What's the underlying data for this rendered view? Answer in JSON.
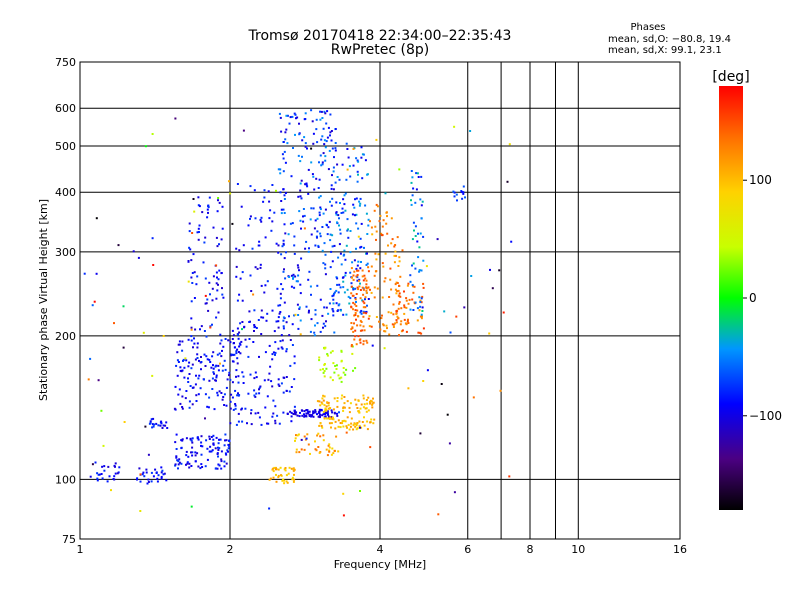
{
  "chart_data": {
    "type": "scatter",
    "title": "Tromsø 20170418 22:34:00–22:35:43",
    "subtitle": "RwPretec (8p)",
    "xlabel": "Frequency [MHz]",
    "ylabel": "Stationary phase Virtual Height [km]",
    "x_scale": "log",
    "y_scale": "log",
    "xlim": [
      1,
      16
    ],
    "ylim": [
      75,
      750
    ],
    "x_ticks": [
      1,
      2,
      4,
      6,
      8,
      10,
      16
    ],
    "x_tick_labels": [
      "1",
      "2",
      "4",
      "6",
      "8",
      "10",
      "16"
    ],
    "x_minor_ticks": [
      7,
      9
    ],
    "y_ticks": [
      75,
      100,
      200,
      300,
      400,
      500,
      600,
      750
    ],
    "y_tick_labels": [
      "75",
      "100",
      "200",
      "300",
      "400",
      "500",
      "600",
      "750"
    ],
    "grid": true,
    "stats": {
      "heading": "Phases",
      "line_o": "mean, sd,O: −80.8, 19.4",
      "line_x": "mean, sd,X:  99.1, 23.1"
    },
    "colorbar": {
      "label": "[deg]",
      "range": [
        -180,
        180
      ],
      "ticks": [
        -100,
        0,
        100
      ],
      "tick_labels": [
        "−100",
        "0",
        "100"
      ]
    },
    "clusters": [
      {
        "f": [
          1.05,
          1.2
        ],
        "h": [
          98,
          110
        ],
        "phase": [
          -110,
          -70
        ],
        "n": 25
      },
      {
        "f": [
          1.3,
          1.5
        ],
        "h": [
          98,
          106
        ],
        "phase": [
          -110,
          -70
        ],
        "n": 30
      },
      {
        "f": [
          1.35,
          1.5
        ],
        "h": [
          128,
          134
        ],
        "phase": [
          -110,
          -70
        ],
        "n": 20
      },
      {
        "f": [
          1.55,
          2.0
        ],
        "h": [
          105,
          125
        ],
        "phase": [
          -110,
          -70
        ],
        "n": 110
      },
      {
        "f": [
          1.55,
          2.1
        ],
        "h": [
          140,
          200
        ],
        "phase": [
          -110,
          -70
        ],
        "n": 150
      },
      {
        "f": [
          1.65,
          1.95
        ],
        "h": [
          200,
          400
        ],
        "phase": [
          -110,
          -70
        ],
        "n": 80
      },
      {
        "f": [
          2.0,
          2.7
        ],
        "h": [
          130,
          220
        ],
        "phase": [
          -110,
          -70
        ],
        "n": 140
      },
      {
        "f": [
          2.05,
          2.6
        ],
        "h": [
          220,
          420
        ],
        "phase": [
          -110,
          -70
        ],
        "n": 70
      },
      {
        "f": [
          2.5,
          3.3
        ],
        "h": [
          200,
          600
        ],
        "phase": [
          -110,
          -40
        ],
        "n": 260
      },
      {
        "f": [
          2.4,
          2.7
        ],
        "h": [
          98,
          106
        ],
        "phase": [
          80,
          120
        ],
        "n": 40
      },
      {
        "f": [
          2.6,
          3.3
        ],
        "h": [
          135,
          140
        ],
        "phase": [
          -110,
          -90
        ],
        "n": 80
      },
      {
        "f": [
          2.7,
          3.3
        ],
        "h": [
          112,
          125
        ],
        "phase": [
          80,
          140
        ],
        "n": 40
      },
      {
        "f": [
          3.0,
          3.6
        ],
        "h": [
          160,
          190
        ],
        "phase": [
          20,
          60
        ],
        "n": 40
      },
      {
        "f": [
          3.0,
          3.9
        ],
        "h": [
          138,
          150
        ],
        "phase": [
          80,
          120
        ],
        "n": 70
      },
      {
        "f": [
          3.0,
          3.9
        ],
        "h": [
          127,
          135
        ],
        "phase": [
          80,
          120
        ],
        "n": 60
      },
      {
        "f": [
          3.2,
          3.8
        ],
        "h": [
          220,
          500
        ],
        "phase": [
          -100,
          -30
        ],
        "n": 150
      },
      {
        "f": [
          3.5,
          3.8
        ],
        "h": [
          190,
          280
        ],
        "phase": [
          120,
          160
        ],
        "n": 90
      },
      {
        "f": [
          3.8,
          4.4
        ],
        "h": [
          200,
          380
        ],
        "phase": [
          100,
          150
        ],
        "n": 90
      },
      {
        "f": [
          4.3,
          4.9
        ],
        "h": [
          200,
          260
        ],
        "phase": [
          110,
          160
        ],
        "n": 60
      },
      {
        "f": [
          4.6,
          4.9
        ],
        "h": [
          220,
          450
        ],
        "phase": [
          -100,
          -20
        ],
        "n": 50
      },
      {
        "f": [
          5.6,
          6.0
        ],
        "h": [
          380,
          420
        ],
        "phase": [
          -100,
          -60
        ],
        "n": 12
      },
      {
        "f": [
          1.0,
          7.5
        ],
        "h": [
          80,
          620
        ],
        "phase": [
          -180,
          180
        ],
        "n": 110
      }
    ]
  }
}
